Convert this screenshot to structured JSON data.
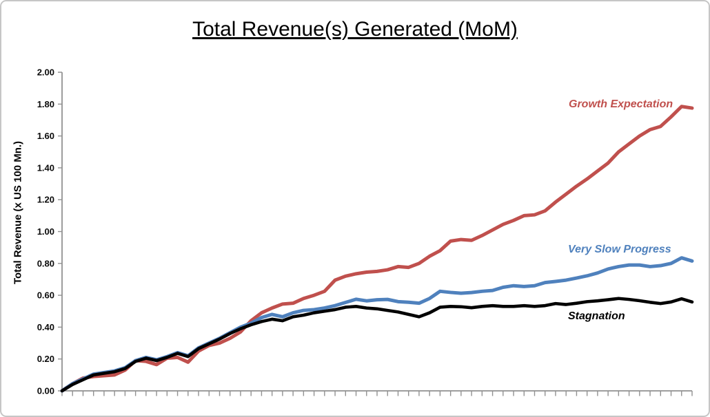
{
  "chart": {
    "title": "Total Revenue(s) Generated (MoM)",
    "y_axis_title": "Total Revenue (x US 100 Mn.)"
  },
  "chart_data": {
    "type": "line",
    "title": "Total Revenue(s) Generated (MoM)",
    "xlabel": "",
    "ylabel": "Total Revenue (x US 100 Mn.)",
    "ylim": [
      0.0,
      2.0
    ],
    "y_tick_step": 0.2,
    "y_tick_labels": [
      "0.00",
      "0.20",
      "0.40",
      "0.60",
      "0.80",
      "1.00",
      "1.20",
      "1.40",
      "1.60",
      "1.80",
      "2.00"
    ],
    "x_axis": {
      "tick_count": 61,
      "labels_visible": false,
      "x_range": [
        0,
        60
      ]
    },
    "grid": false,
    "legend_position": "inline-labels-right",
    "axis_color": "#919191",
    "series": [
      {
        "name": "Growth Expectation",
        "color": "#c0504d",
        "values": [
          0.0,
          0.045,
          0.08,
          0.09,
          0.095,
          0.1,
          0.13,
          0.19,
          0.185,
          0.165,
          0.205,
          0.21,
          0.18,
          0.25,
          0.285,
          0.3,
          0.33,
          0.37,
          0.44,
          0.49,
          0.52,
          0.545,
          0.55,
          0.58,
          0.6,
          0.625,
          0.695,
          0.72,
          0.735,
          0.745,
          0.75,
          0.76,
          0.78,
          0.775,
          0.8,
          0.845,
          0.88,
          0.94,
          0.95,
          0.945,
          0.975,
          1.01,
          1.045,
          1.07,
          1.1,
          1.105,
          1.13,
          1.185,
          1.235,
          1.285,
          1.33,
          1.38,
          1.43,
          1.5,
          1.55,
          1.6,
          1.64,
          1.66,
          1.72,
          1.785,
          1.775
        ]
      },
      {
        "name": "Very Slow Progress",
        "color": "#4f81bd",
        "values": [
          0.0,
          0.045,
          0.075,
          0.105,
          0.115,
          0.125,
          0.145,
          0.19,
          0.21,
          0.195,
          0.215,
          0.24,
          0.22,
          0.27,
          0.3,
          0.33,
          0.365,
          0.4,
          0.425,
          0.46,
          0.48,
          0.465,
          0.49,
          0.505,
          0.51,
          0.52,
          0.535,
          0.555,
          0.575,
          0.565,
          0.572,
          0.574,
          0.56,
          0.556,
          0.55,
          0.58,
          0.625,
          0.618,
          0.613,
          0.617,
          0.625,
          0.63,
          0.65,
          0.66,
          0.655,
          0.66,
          0.68,
          0.687,
          0.695,
          0.708,
          0.722,
          0.74,
          0.765,
          0.78,
          0.79,
          0.79,
          0.78,
          0.786,
          0.8,
          0.835,
          0.815
        ]
      },
      {
        "name": "Stagnation",
        "color": "#000000",
        "values": [
          0.0,
          0.04,
          0.07,
          0.1,
          0.11,
          0.12,
          0.14,
          0.185,
          0.205,
          0.19,
          0.21,
          0.235,
          0.215,
          0.265,
          0.295,
          0.325,
          0.36,
          0.39,
          0.415,
          0.435,
          0.45,
          0.44,
          0.465,
          0.475,
          0.49,
          0.5,
          0.51,
          0.525,
          0.53,
          0.52,
          0.515,
          0.505,
          0.495,
          0.48,
          0.465,
          0.49,
          0.525,
          0.53,
          0.528,
          0.522,
          0.53,
          0.535,
          0.53,
          0.53,
          0.535,
          0.53,
          0.535,
          0.548,
          0.542,
          0.55,
          0.56,
          0.565,
          0.572,
          0.58,
          0.574,
          0.566,
          0.556,
          0.548,
          0.558,
          0.578,
          0.558
        ]
      }
    ]
  }
}
